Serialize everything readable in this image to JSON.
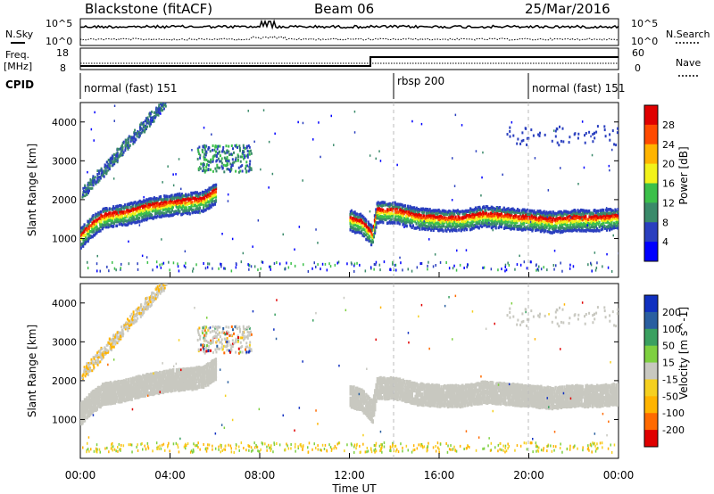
{
  "header": {
    "radar": "Blackstone (fitACF)",
    "beam": "Beam 06",
    "date": "25/Mar/2016"
  },
  "noise_panel": {
    "left_label": "N.Sky",
    "right_label": "N.Search",
    "y_ticks": [
      "10^5",
      "10^0"
    ],
    "right_ticks": [
      "10^5",
      "10^0"
    ]
  },
  "freq_panel": {
    "left_label_1": "Freq.",
    "left_label_2": "[MHz]",
    "left_ticks": [
      "18",
      "8"
    ],
    "right_label": "Nave",
    "right_ticks": [
      "60",
      "0"
    ]
  },
  "cpid_panel": {
    "label": "CPID",
    "segments": [
      {
        "name": "normal (fast) 151",
        "start_hour": 0,
        "end_hour": 14
      },
      {
        "name": "rbsp 200",
        "start_hour": 14,
        "end_hour": 20
      },
      {
        "name": "normal (fast) 151",
        "start_hour": 20,
        "end_hour": 24
      }
    ]
  },
  "chart_data": [
    {
      "type": "heatmap",
      "title": "",
      "xlabel": "Time UT",
      "ylabel": "Slant Range [km]",
      "colorbar_label": "Power [dB]",
      "colorbar_ticks": [
        "28",
        "24",
        "20",
        "16",
        "12",
        "8",
        "4"
      ],
      "colorbar_colors": [
        "#0000ff",
        "#2a3fbf",
        "#3a8a6a",
        "#3cc04a",
        "#f2f21a",
        "#ffb400",
        "#ff4a00",
        "#e00000"
      ],
      "xlim": [
        0,
        24
      ],
      "ylim": [
        0,
        4500
      ],
      "y_ticks": [
        1000,
        2000,
        3000,
        4000
      ],
      "x_ticks": [
        "00:00",
        "04:00",
        "08:00",
        "12:00",
        "16:00",
        "20:00",
        "00:00"
      ],
      "main_echo_band_km": [
        {
          "hour": 0.0,
          "range": 1150
        },
        {
          "hour": 0.5,
          "range": 1450
        },
        {
          "hour": 1.0,
          "range": 1650
        },
        {
          "hour": 2.0,
          "range": 1750
        },
        {
          "hour": 3.0,
          "range": 1900
        },
        {
          "hour": 4.0,
          "range": 2000
        },
        {
          "hour": 5.0,
          "range": 2050
        },
        {
          "hour": 5.5,
          "range": 2100
        },
        {
          "hour": 6.0,
          "range": 2300
        }
      ],
      "late_echo_band_km": [
        {
          "hour": 12.0,
          "range": 1600
        },
        {
          "hour": 12.5,
          "range": 1500
        },
        {
          "hour": 13.0,
          "range": 1200
        },
        {
          "hour": 13.2,
          "range": 1800
        },
        {
          "hour": 14.0,
          "range": 1800
        },
        {
          "hour": 15.0,
          "range": 1650
        },
        {
          "hour": 16.0,
          "range": 1600
        },
        {
          "hour": 17.0,
          "range": 1600
        },
        {
          "hour": 18.0,
          "range": 1700
        },
        {
          "hour": 19.0,
          "range": 1650
        },
        {
          "hour": 20.0,
          "range": 1600
        },
        {
          "hour": 21.0,
          "range": 1550
        },
        {
          "hour": 22.0,
          "range": 1600
        },
        {
          "hour": 23.0,
          "range": 1600
        },
        {
          "hour": 24.0,
          "range": 1650
        }
      ]
    },
    {
      "type": "heatmap",
      "title": "",
      "xlabel": "Time UT",
      "ylabel": "Slant Range [km]",
      "colorbar_label": "Velocity [m s^-1]",
      "colorbar_ticks": [
        "200",
        "100",
        "50",
        "15",
        "-15",
        "-50",
        "-100",
        "-200"
      ],
      "colorbar_colors": [
        "#e00000",
        "#ff6a00",
        "#ffb400",
        "#f5d020",
        "#c8c8c0",
        "#7ed040",
        "#3aa060",
        "#2a5fa0",
        "#1030c0"
      ],
      "xlim": [
        0,
        24
      ],
      "ylim": [
        0,
        4500
      ],
      "y_ticks": [
        1000,
        2000,
        3000,
        4000
      ],
      "x_ticks": [
        "00:00",
        "04:00",
        "08:00",
        "12:00",
        "16:00",
        "20:00",
        "00:00"
      ]
    }
  ]
}
